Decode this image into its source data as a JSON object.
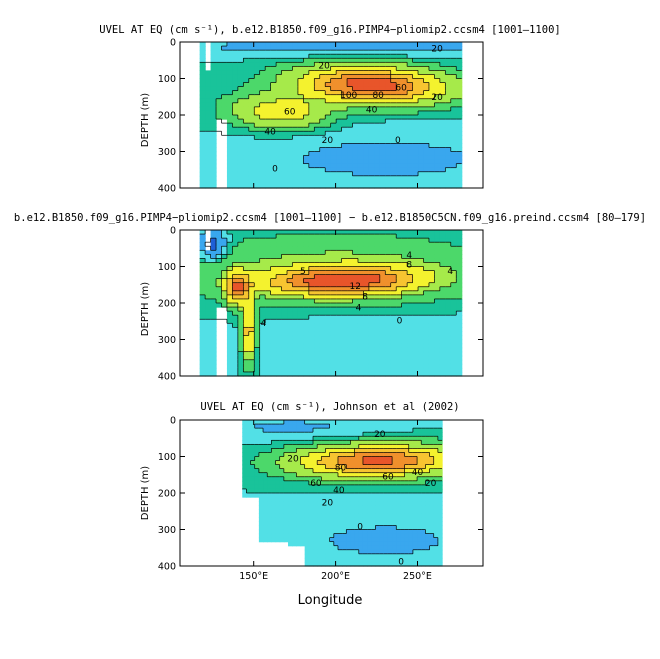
{
  "figure": {
    "xlabel": "Longitude",
    "x_tick_labels": [
      "150°E",
      "200°E",
      "250°E"
    ],
    "x_ticks": [
      150,
      200,
      250
    ],
    "xlim": [
      105,
      290
    ]
  },
  "colors": [
    "#0a2a9c",
    "#1e5fd6",
    "#39a7ee",
    "#52e0e6",
    "#19c39a",
    "#4cd86a",
    "#a6ea4a",
    "#f4f22e",
    "#f7c431",
    "#f0902c",
    "#e8552a",
    "#d7191c"
  ],
  "chart_data": [
    {
      "type": "heatmap",
      "title": "UVEL AT EQ (cm s⁻¹), b.e12.B1850.f09_g16.PIMP4−pliomip2.ccsm4 [1001–1100]",
      "ylabel": "DEPTH (m)",
      "ylim": [
        400,
        0
      ],
      "y_tick_labels": [
        "0",
        "100",
        "200",
        "300",
        "400"
      ],
      "y_ticks": [
        0,
        100,
        200,
        300,
        400
      ],
      "domain_lon": [
        117,
        277
      ],
      "contour_labels": [
        {
          "text": "20",
          "lon": 262,
          "depth": 18
        },
        {
          "text": "20",
          "lon": 193,
          "depth": 65
        },
        {
          "text": "100",
          "lon": 208,
          "depth": 145
        },
        {
          "text": "80",
          "lon": 226,
          "depth": 145
        },
        {
          "text": "60",
          "lon": 240,
          "depth": 125
        },
        {
          "text": "60",
          "lon": 172,
          "depth": 190
        },
        {
          "text": "40",
          "lon": 160,
          "depth": 245
        },
        {
          "text": "40",
          "lon": 222,
          "depth": 185
        },
        {
          "text": "20",
          "lon": 195,
          "depth": 268
        },
        {
          "text": "0",
          "lon": 238,
          "depth": 268
        },
        {
          "text": "20",
          "lon": 262,
          "depth": 150
        },
        {
          "text": "0",
          "lon": 163,
          "depth": 347
        }
      ]
    },
    {
      "type": "heatmap",
      "title": "b.e12.B1850.f09_g16.PIMP4−pliomip2.ccsm4 [1001–1100] − b.e12.B1850C5CN.f09_g16.preind.ccsm4 [80–179]",
      "ylabel": "DEPTH (m)",
      "ylim": [
        400,
        0
      ],
      "y_tick_labels": [
        "0",
        "100",
        "200",
        "300",
        "400"
      ],
      "y_ticks": [
        0,
        100,
        200,
        300,
        400
      ],
      "domain_lon": [
        117,
        277
      ],
      "contour_labels": [
        {
          "text": "4",
          "lon": 245,
          "depth": 68
        },
        {
          "text": "8",
          "lon": 245,
          "depth": 95
        },
        {
          "text": "12",
          "lon": 212,
          "depth": 153
        },
        {
          "text": "8",
          "lon": 218,
          "depth": 182
        },
        {
          "text": "4",
          "lon": 214,
          "depth": 212
        },
        {
          "text": "4",
          "lon": 156,
          "depth": 255
        },
        {
          "text": "5",
          "lon": 180,
          "depth": 113
        },
        {
          "text": "0",
          "lon": 239,
          "depth": 248
        },
        {
          "text": "4",
          "lon": 270,
          "depth": 112
        }
      ]
    },
    {
      "type": "heatmap",
      "title": "UVEL AT EQ (cm s⁻¹), Johnson et al (2002)",
      "ylabel": "DEPTH (m)",
      "ylim": [
        400,
        0
      ],
      "y_tick_labels": [
        "0",
        "100",
        "200",
        "300",
        "400"
      ],
      "y_ticks": [
        0,
        100,
        200,
        300,
        400
      ],
      "domain_lon": [
        143,
        265
      ],
      "contour_labels": [
        {
          "text": "20",
          "lon": 227,
          "depth": 38
        },
        {
          "text": "20",
          "lon": 174,
          "depth": 105
        },
        {
          "text": "80",
          "lon": 203,
          "depth": 130
        },
        {
          "text": "60",
          "lon": 232,
          "depth": 155
        },
        {
          "text": "40",
          "lon": 250,
          "depth": 142
        },
        {
          "text": "20",
          "lon": 258,
          "depth": 172
        },
        {
          "text": "60",
          "lon": 188,
          "depth": 172
        },
        {
          "text": "40",
          "lon": 202,
          "depth": 192
        },
        {
          "text": "20",
          "lon": 195,
          "depth": 226
        },
        {
          "text": "0",
          "lon": 215,
          "depth": 292
        },
        {
          "text": "0",
          "lon": 240,
          "depth": 388
        }
      ]
    }
  ]
}
